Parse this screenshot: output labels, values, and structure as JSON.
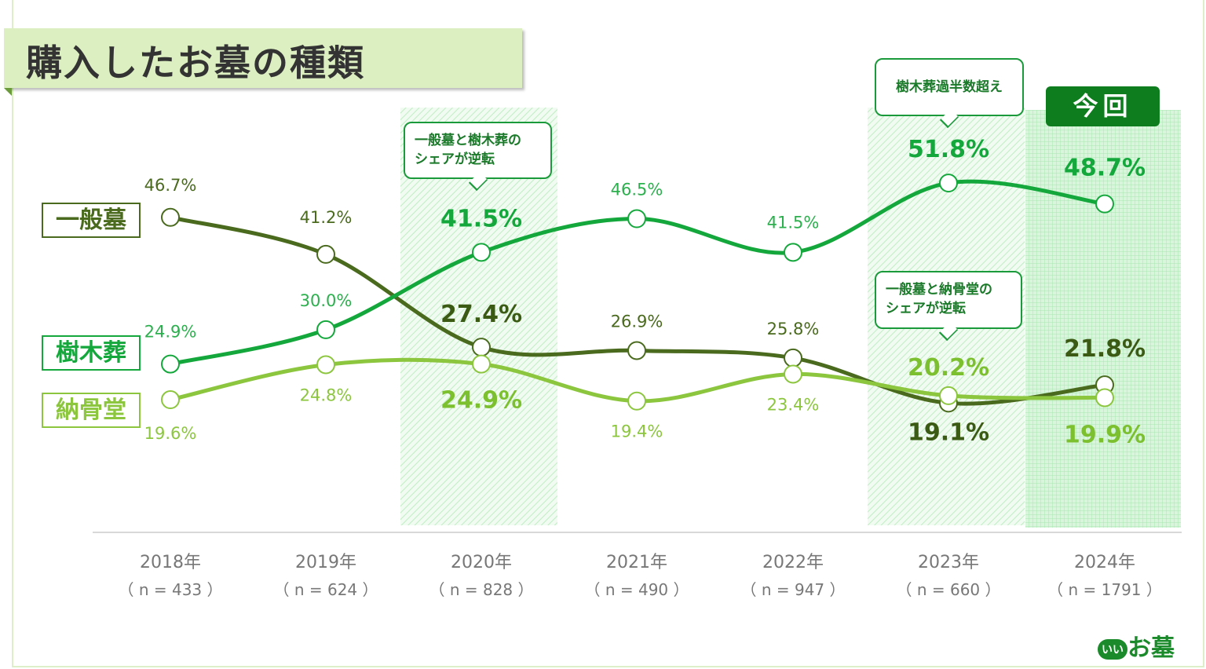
{
  "title": "購入したお墓の種類",
  "callouts": {
    "reversal_2020": "一般墓と樹木葬の\nシェアが逆転",
    "majority_2023": "樹木葬過半数超え",
    "reversal_2023": "一般墓と納骨堂の\nシェアが逆転"
  },
  "current_badge": "今回",
  "logo_text": "お墓",
  "logo_mark": "いい",
  "chart_data": {
    "type": "line",
    "categories": [
      "2018年",
      "2019年",
      "2020年",
      "2021年",
      "2022年",
      "2023年",
      "2024年"
    ],
    "sample_sizes": [
      "（ n = 433 ）",
      "（ n = 624 ）",
      "（ n = 828 ）",
      "（ n = 490 ）",
      "（ n = 947 ）",
      "（ n = 660 ）",
      "（ n = 1791 ）"
    ],
    "highlighted_categories": [
      "2020年",
      "2023年",
      "2024年"
    ],
    "ylim": [
      0,
      55
    ],
    "grid": false,
    "legend_placement": "left",
    "series": [
      {
        "name": "一般墓",
        "color": "#4a6a1e",
        "values": [
          46.7,
          41.2,
          27.4,
          26.9,
          25.8,
          19.1,
          21.8
        ],
        "labels": [
          "46.7%",
          "41.2%",
          "27.4%",
          "26.9%",
          "25.8%",
          "19.1%",
          "21.8%"
        ]
      },
      {
        "name": "樹木葬",
        "color": "#14a83c",
        "values": [
          24.9,
          30.0,
          41.5,
          46.5,
          41.5,
          51.8,
          48.7
        ],
        "labels": [
          "24.9%",
          "30.0%",
          "41.5%",
          "46.5%",
          "41.5%",
          "51.8%",
          "48.7%"
        ]
      },
      {
        "name": "納骨堂",
        "color": "#8cc63f",
        "values": [
          19.6,
          24.8,
          24.9,
          19.4,
          23.4,
          20.2,
          19.9
        ],
        "labels": [
          "19.6%",
          "24.8%",
          "24.9%",
          "19.4%",
          "23.4%",
          "20.2%",
          "19.9%"
        ]
      }
    ]
  }
}
